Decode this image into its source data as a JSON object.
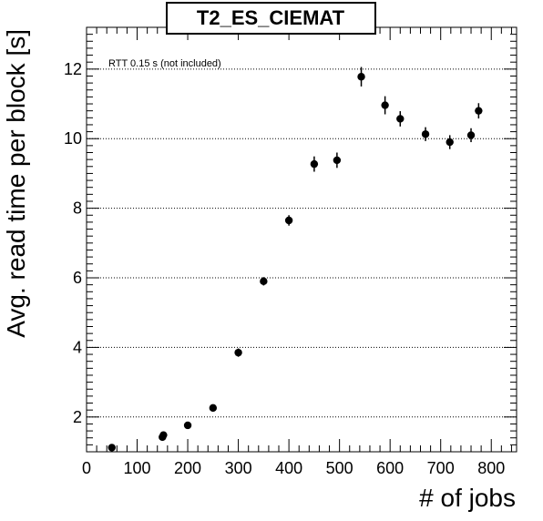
{
  "chart_data": {
    "type": "scatter",
    "title": "T2_ES_CIEMAT",
    "xlabel": "# of jobs",
    "ylabel": "Avg. read time per block [s]",
    "annotation": "RTT 0.15 s (not included)",
    "xlim": [
      0,
      850
    ],
    "ylim": [
      1.0,
      13.2
    ],
    "x_ticks": [
      0,
      100,
      200,
      300,
      400,
      500,
      600,
      700,
      800
    ],
    "y_ticks": [
      2,
      4,
      6,
      8,
      10,
      12
    ],
    "grid": "horizontal dotted at major y ticks",
    "marker_color": "#000000",
    "points": [
      {
        "x": 50,
        "y": 1.12,
        "err": 0.08
      },
      {
        "x": 150,
        "y": 1.42,
        "err": 0.1
      },
      {
        "x": 152,
        "y": 1.48,
        "err": 0.1
      },
      {
        "x": 200,
        "y": 1.76,
        "err": 0.1
      },
      {
        "x": 250,
        "y": 2.26,
        "err": 0.1
      },
      {
        "x": 300,
        "y": 3.85,
        "err": 0.12
      },
      {
        "x": 350,
        "y": 5.9,
        "err": 0.12
      },
      {
        "x": 400,
        "y": 7.65,
        "err": 0.15
      },
      {
        "x": 450,
        "y": 9.27,
        "err": 0.22
      },
      {
        "x": 495,
        "y": 9.38,
        "err": 0.22
      },
      {
        "x": 543,
        "y": 11.78,
        "err": 0.28
      },
      {
        "x": 590,
        "y": 10.96,
        "err": 0.26
      },
      {
        "x": 620,
        "y": 10.57,
        "err": 0.22
      },
      {
        "x": 670,
        "y": 10.13,
        "err": 0.2
      },
      {
        "x": 718,
        "y": 9.9,
        "err": 0.2
      },
      {
        "x": 760,
        "y": 10.1,
        "err": 0.2
      },
      {
        "x": 775,
        "y": 10.8,
        "err": 0.22
      }
    ]
  }
}
